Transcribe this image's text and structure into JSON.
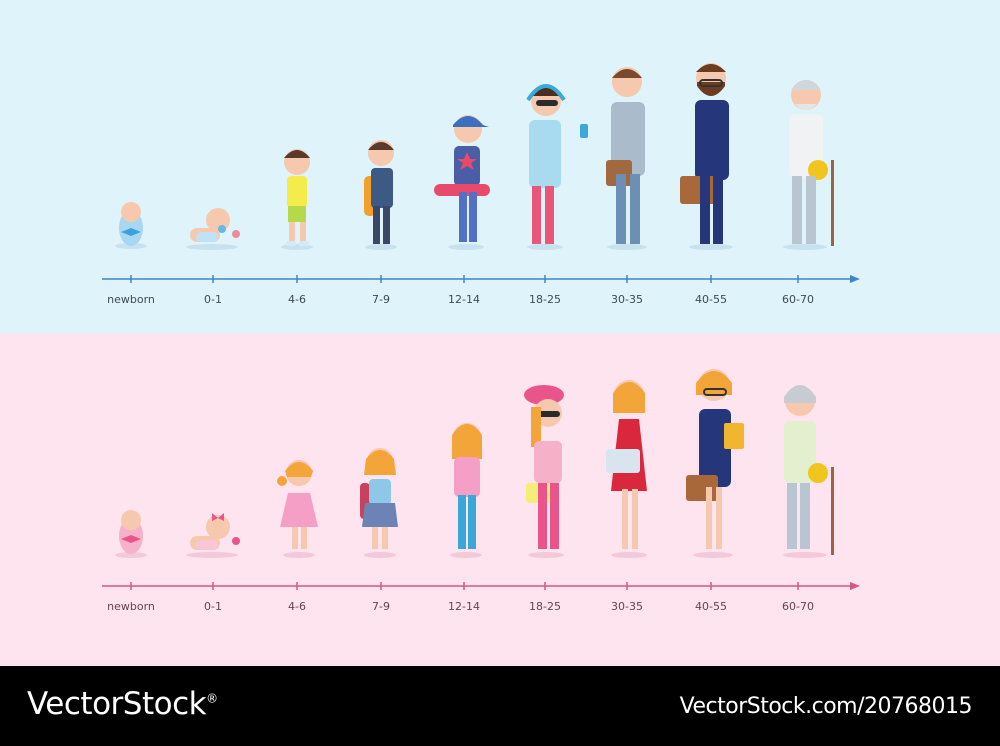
{
  "male_timeline": {
    "axis_color": "#3e86c9",
    "stages": [
      "newborn",
      "0-1",
      "4-6",
      "7-9",
      "12-14",
      "18-25",
      "30-35",
      "40-55",
      "60-70"
    ]
  },
  "female_timeline": {
    "axis_color": "#d9567f",
    "stages": [
      "newborn",
      "0-1",
      "4-6",
      "7-9",
      "12-14",
      "18-25",
      "30-35",
      "40-55",
      "60-70"
    ]
  },
  "footer": {
    "brand": "VectorStock",
    "registered": "®",
    "image_ref": "VectorStock.com/20768015"
  }
}
